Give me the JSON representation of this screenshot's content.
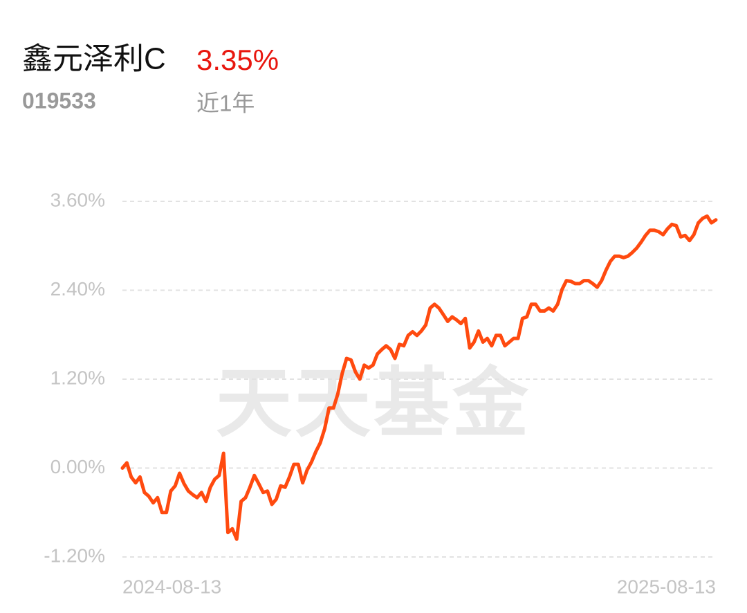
{
  "header": {
    "title": "鑫元泽利C",
    "return": "3.35%",
    "code": "019533",
    "period": "近1年"
  },
  "watermark": "天天基金",
  "chart_data": {
    "type": "line",
    "categories": [
      "2024-08-13",
      null,
      null,
      null,
      null,
      null,
      null,
      null,
      null,
      null,
      null,
      null,
      null,
      null,
      null,
      null,
      null,
      null,
      null,
      null,
      null,
      null,
      null,
      null,
      null,
      null,
      null,
      null,
      null,
      null,
      null,
      null,
      null,
      null,
      null,
      null,
      null,
      null,
      null,
      null,
      null,
      null,
      null,
      null,
      null,
      null,
      null,
      null,
      null,
      null,
      null,
      null,
      null,
      null,
      null,
      null,
      null,
      null,
      null,
      null,
      null,
      null,
      null,
      null,
      null,
      null,
      null,
      null,
      null,
      null,
      null,
      null,
      null,
      null,
      null,
      null,
      null,
      null,
      null,
      null,
      null,
      null,
      null,
      null,
      null,
      null,
      null,
      null,
      null,
      null,
      null,
      null,
      null,
      null,
      null,
      null,
      null,
      null,
      null,
      null,
      null,
      null,
      null,
      null,
      null,
      null,
      null,
      null,
      null,
      null,
      null,
      null,
      null,
      null,
      null,
      null,
      null,
      null,
      null,
      null,
      null,
      null,
      null,
      null,
      null,
      null,
      null,
      null,
      null,
      null,
      null,
      null,
      null,
      null,
      null,
      "2025-08-13"
    ],
    "series": [
      {
        "color": "#ff4a0f",
        "values": [
          0.0,
          0.07,
          -0.12,
          -0.2,
          -0.12,
          -0.33,
          -0.38,
          -0.47,
          -0.4,
          -0.6,
          -0.6,
          -0.31,
          -0.24,
          -0.07,
          -0.21,
          -0.31,
          -0.36,
          -0.4,
          -0.33,
          -0.45,
          -0.26,
          -0.15,
          -0.1,
          0.2,
          -0.87,
          -0.82,
          -0.96,
          -0.45,
          -0.4,
          -0.26,
          -0.1,
          -0.21,
          -0.33,
          -0.31,
          -0.49,
          -0.42,
          -0.24,
          -0.26,
          -0.12,
          0.05,
          0.05,
          -0.2,
          -0.03,
          0.08,
          0.22,
          0.34,
          0.53,
          0.81,
          0.81,
          1.0,
          1.28,
          1.48,
          1.46,
          1.3,
          1.2,
          1.39,
          1.35,
          1.39,
          1.54,
          1.6,
          1.65,
          1.6,
          1.48,
          1.67,
          1.65,
          1.79,
          1.84,
          1.79,
          1.85,
          1.93,
          2.16,
          2.21,
          2.16,
          2.07,
          1.98,
          2.04,
          2.0,
          1.95,
          2.02,
          1.62,
          1.7,
          1.85,
          1.7,
          1.75,
          1.65,
          1.79,
          1.79,
          1.65,
          1.7,
          1.75,
          1.75,
          2.02,
          2.04,
          2.21,
          2.21,
          2.12,
          2.12,
          2.16,
          2.12,
          2.21,
          2.41,
          2.53,
          2.52,
          2.49,
          2.49,
          2.53,
          2.53,
          2.49,
          2.44,
          2.53,
          2.67,
          2.79,
          2.86,
          2.86,
          2.84,
          2.86,
          2.91,
          2.97,
          3.05,
          3.14,
          3.21,
          3.21,
          3.19,
          3.15,
          3.23,
          3.29,
          3.27,
          3.12,
          3.14,
          3.07,
          3.15,
          3.31,
          3.37,
          3.4,
          3.31,
          3.35
        ]
      }
    ],
    "ylim": [
      -1.2,
      3.6
    ],
    "yticks": [
      {
        "value": 3.6,
        "label": "3.60%"
      },
      {
        "value": 2.4,
        "label": "2.40%"
      },
      {
        "value": 1.2,
        "label": "1.20%"
      },
      {
        "value": 0,
        "label": "0.00%"
      },
      {
        "value": -1.2,
        "label": "-1.20%"
      }
    ],
    "grid": true
  }
}
